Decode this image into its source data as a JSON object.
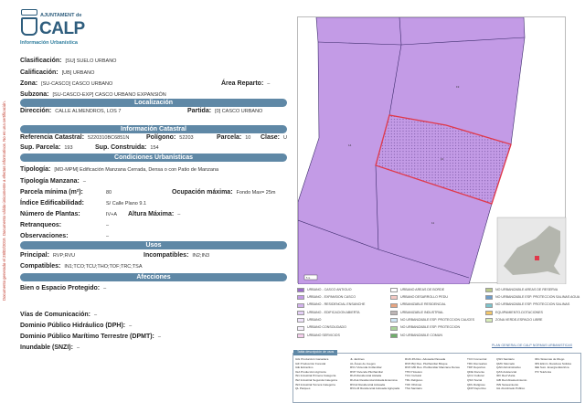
{
  "side_note": "Documento generado el 28/02/2019. Documento válido únicamente a efectos informativos. No es una certificación.",
  "logo": {
    "ajuntament": "AJUNTAMENT de",
    "name": "CALP",
    "subtitle": "Información Urbanística"
  },
  "general": {
    "clasificacion": {
      "label": "Clasificación:",
      "value": "[SU] SUELO URBANO"
    },
    "calificacion": {
      "label": "Calificación:",
      "value": "[UB] URBANO"
    },
    "zona": {
      "label": "Zona:",
      "value": "[SU-CASCO] CASCO URBANO"
    },
    "area_reparto": {
      "label": "Área Reparto:",
      "value": "–"
    },
    "subzona": {
      "label": "Subzona:",
      "value": "[SU-CASCO-EXP] CASCO URBANO EXPANSIÓN"
    }
  },
  "localizacion": {
    "title": "Localización",
    "direccion": {
      "label": "Dirección:",
      "value": "CALLE ALMENDROS, LOS 7"
    },
    "partida": {
      "label": "Partida:",
      "value": "[0] CASCO URBANO"
    }
  },
  "catastral": {
    "title": "Información Catastral",
    "referencia": {
      "label": "Referencia Catastral:",
      "value": "5220310BC6851N"
    },
    "poligono": {
      "label": "Polígono:",
      "value": "52203"
    },
    "parcela": {
      "label": "Parcela:",
      "value": "10"
    },
    "clase": {
      "label": "Clase:",
      "value": "U"
    },
    "sup_parcela": {
      "label": "Sup. Parcela:",
      "value": "193"
    },
    "sup_construida": {
      "label": "Sup. Construida:",
      "value": "154"
    }
  },
  "condiciones": {
    "title": "Condiciones Urbanísticas",
    "tipologia": {
      "label": "Tipología:",
      "value": "[MD-MPM] Edificación Manzana Cerrada, Densa o con Patio de Manzana"
    },
    "tipologia_manzana": {
      "label": "Tipología Manzana:",
      "value": "–"
    },
    "parcela_minima": {
      "label": "Parcela mínima (m²):",
      "value": "80"
    },
    "ocupacion": {
      "label": "Ocupación máxima:",
      "value": "Fondo Max= 25m"
    },
    "indice": {
      "label": "Índice Edificabilidad:",
      "value": "S/ Calle Plano 9.1"
    },
    "plantas": {
      "label": "Número de Plantas:",
      "value": "IV+A"
    },
    "altura": {
      "label": "Altura Máxima:",
      "value": "–"
    },
    "retranqueos": {
      "label": "Retranqueos:",
      "value": "–"
    },
    "observaciones": {
      "label": "Observaciones:",
      "value": "–"
    }
  },
  "usos": {
    "title": "Usos",
    "principal": {
      "label": "Principal:",
      "value": "RVP;RVU"
    },
    "incompatibles": {
      "label": "Incompatibles:",
      "value": "IN2;IN3"
    },
    "compatibles": {
      "label": "Compatibles:",
      "value": "IN1;TCO;TCU;THO;TOF;TRC;TSA"
    }
  },
  "afecciones": {
    "title": "Afecciones",
    "bien": {
      "label": "Bien o Espacio Protegido:",
      "value": "–"
    },
    "vias": {
      "label": "Vías de Comunicación:",
      "value": "–"
    },
    "dph": {
      "label": "Dominio Público Hidráulico (DPH):",
      "value": "–"
    },
    "dpmt": {
      "label": "Dominio Público Marítimo Terrestre (DPMT):",
      "value": "–"
    },
    "inundable": {
      "label": "Inundable (SNZI):",
      "value": "–"
    }
  },
  "map": {
    "parcel_labels": [
      "19",
      "14",
      "10",
      "11"
    ],
    "scale": "5 m",
    "colors": {
      "urban": "#c39be6",
      "highlight": "#e0384a",
      "line": "#3a2a6a"
    }
  },
  "legend": [
    {
      "label": "URBANO - CASCO ANTIGUO",
      "color": "#9b6cc9"
    },
    {
      "label": "URBANO - EXPANSION CASCO",
      "color": "#c39be6"
    },
    {
      "label": "URBANO - RESIDENCIAL ENSANCHE",
      "color": "#d3b2ee"
    },
    {
      "label": "URBANO - EDIFICACION ABIERTA",
      "color": "#e3cdf5"
    },
    {
      "label": "URBANO",
      "color": "#efe3fa"
    },
    {
      "label": "URBANO CONSOLIDADO",
      "color": "#f7f0fc"
    },
    {
      "label": "URBANO SERVICIOS",
      "color": "#f5cdec"
    },
    {
      "label": "URBANO AREAS DE BORDE",
      "color": "#ffffff"
    },
    {
      "label": "URBANO DESARROLLO PEDU",
      "color": "#f4c9c4"
    },
    {
      "label": "URBANIZABLE RESIDENCIAL",
      "color": "#e8a582"
    },
    {
      "label": "URBANIZABLE INDUSTRIAL",
      "color": "#bdb5b5"
    },
    {
      "label": "NO URBANIZABLE ESP. PROTECCION CAUCES",
      "color": "#cfe6f5"
    },
    {
      "label": "NO URBANIZABLE ESP. PROTECCION",
      "color": "#a9d39a"
    },
    {
      "label": "NO URBANIZABLE COMUN",
      "color": "#6fae6a"
    },
    {
      "label": "NO URBANIZABLE AREAS DE RESERVA",
      "color": "#b9c98a"
    },
    {
      "label": "NO URBANIZABLE ESP. PROTECCION SALINAS AGUA",
      "color": "#6e9cc9"
    },
    {
      "label": "NO URBANIZABLE ESP. PROTECCION SALINAS",
      "color": "#7cc4cc"
    },
    {
      "label": "EQUIPAMIENTO-DOTACIONES",
      "color": "#f2c66a"
    },
    {
      "label": "ZONA VERDE-ESPACIO LIBRE",
      "color": "#d7ecb8"
    }
  ],
  "plan_link": "PLAN GENERAL DE CALP NORMAS URBANISTICAS",
  "uses_table": {
    "title": "Tabla descripción de usos",
    "columns": [
      [
        "IAG Producción Ganadera",
        "IAF Producción Forestal",
        "IAE Extractivo",
        "IGA Producción Agrícola",
        "IN1 Industrial Primera Categoría",
        "IN2 Industrial Segunda Categoría",
        "IN3 Industrial Tercera Categoría",
        "QL Parques"
      ],
      [
        "JL Jardines",
        "AL Áreas de Juegos",
        "RVU Vivienda Unifamiliar",
        "RVP Vivienda Plurifamiliar",
        "RUA Residencial Aislada",
        "RUA-E Residencial Aislada Extensiva",
        "RVG2 Residencial Adosada",
        "RVG-M Residencial Adosada Agrupada"
      ],
      [
        "RUD-PA Res. Adosada Pareada",
        "RVP-BQ Res. Plurifamiliar Bloque",
        "RVP-MD Res. Plurifamiliar Manzana Densa",
        "THO Hotelero",
        "TCU Cultural",
        "TRL Religioso",
        "TOF Oficinas",
        "TSA Sanitario"
      ],
      [
        "TCO Comercial",
        "TRC Recreativo",
        "TDP Deportivo",
        "QDE Docente",
        "QCU Cultural",
        "QSO Social",
        "QRL Religioso",
        "QDP Deportivo"
      ],
      [
        "QSN Sanitario",
        "QMC Mercado",
        "QAD Administrativo",
        "QAS Asistencial",
        "IRV Red Viaria",
        "IAB Red Abastecimiento",
        "ISN Saneamiento",
        "IAL Alumbrado Público"
      ],
      [
        "IRG Sistemas de Riego",
        "IRS Elimin. Residuos Sólidos",
        "IEE Sum. Energía Eléctrica",
        "ITF Telefonía"
      ]
    ]
  }
}
